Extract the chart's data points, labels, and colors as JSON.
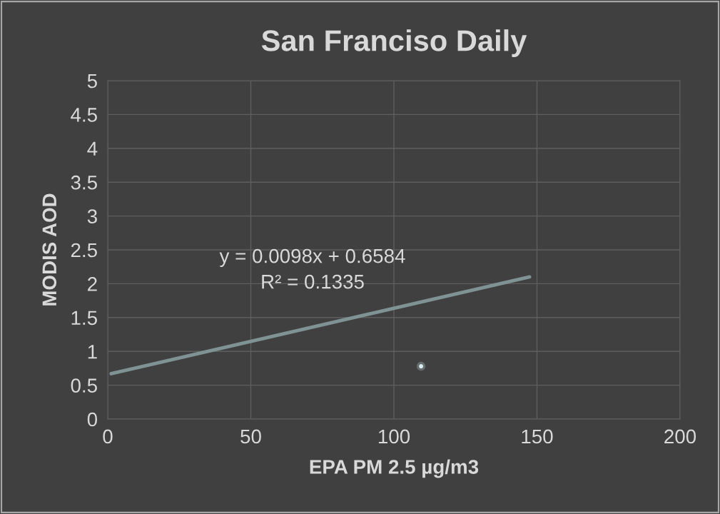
{
  "chart_data": {
    "type": "scatter",
    "title": "San Franciso Daily",
    "xlabel": "EPA PM 2.5 µg/m3",
    "ylabel": "MODIS AOD",
    "xlim": [
      0,
      200
    ],
    "xticks": [
      0,
      50,
      100,
      150,
      200
    ],
    "ylim": [
      0,
      5
    ],
    "yticks": [
      0,
      0.5,
      1,
      1.5,
      2,
      2.5,
      3,
      3.5,
      4,
      4.5,
      5
    ],
    "grid": true,
    "series": [
      {
        "color": "#dbeef3",
        "marker": "circle",
        "x": [
          109.5
        ],
        "values": [
          0.78
        ]
      },
      {
        "type": "line",
        "color": "#7f9294",
        "marker": "none",
        "x": [
          1.2,
          147.4
        ],
        "values": [
          0.67,
          2.1
        ],
        "line_style": "solid"
      }
    ],
    "annotations": [
      "y = 0.0098x + 0.6584",
      "R² = 0.1335"
    ]
  }
}
